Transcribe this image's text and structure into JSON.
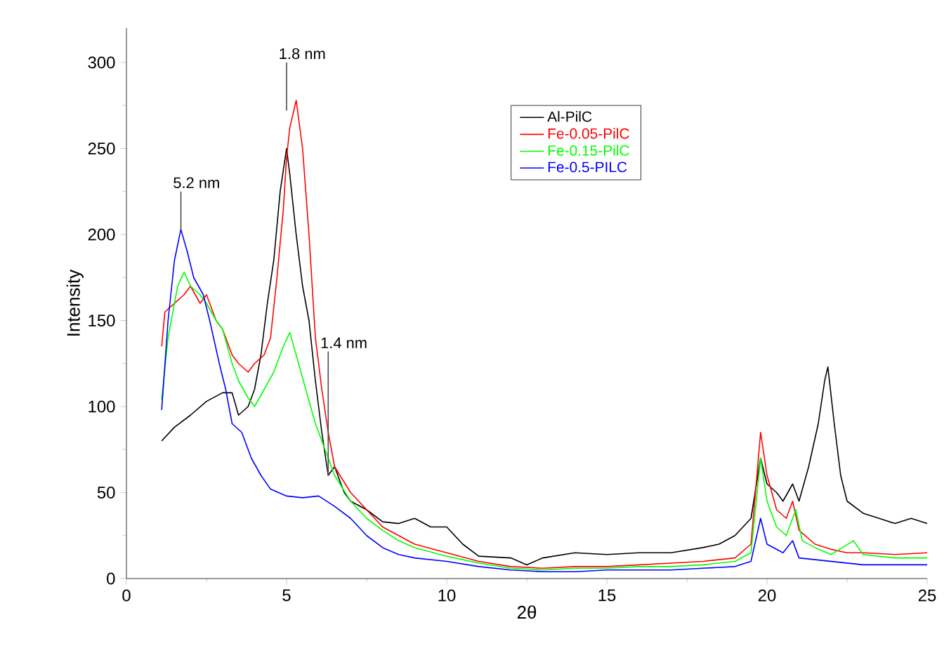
{
  "chart_data": {
    "type": "line",
    "xlabel": "2θ",
    "ylabel": "Intensity",
    "xlim": [
      0,
      25
    ],
    "ylim": [
      0,
      320
    ],
    "xticks": [
      0,
      5,
      10,
      15,
      20,
      25
    ],
    "yticks": [
      0,
      50,
      100,
      150,
      200,
      250,
      300
    ],
    "legend": "top right",
    "grid": false,
    "marker": "none",
    "line_style": "solid",
    "annotations": [
      {
        "text": "1.8 nm",
        "x": 5.0,
        "y": 272
      },
      {
        "text": "5.2 nm",
        "x": 1.7,
        "y": 202
      },
      {
        "text": "1.4 nm",
        "x": 6.3,
        "y": 60
      }
    ],
    "series": [
      {
        "name": "Al-PilC",
        "color": "#000000",
        "x": [
          1.1,
          1.5,
          2,
          2.5,
          3,
          3.3,
          3.5,
          3.8,
          4,
          4.2,
          4.4,
          4.6,
          4.8,
          5.0,
          5.1,
          5.3,
          5.5,
          5.7,
          5.9,
          6.1,
          6.3,
          6.5,
          6.8,
          7,
          7.5,
          8,
          8.5,
          9,
          9.5,
          10,
          10.5,
          11,
          12,
          12.5,
          13,
          14,
          15,
          16,
          17,
          18,
          18.5,
          19,
          19.5,
          19.8,
          20,
          20.3,
          20.5,
          20.8,
          21,
          21.3,
          21.6,
          21.8,
          21.9,
          22.1,
          22.3,
          22.5,
          23,
          23.5,
          24,
          24.5,
          25
        ],
        "values": [
          80,
          88,
          95,
          103,
          108,
          108,
          95,
          100,
          110,
          130,
          160,
          185,
          225,
          250,
          235,
          200,
          170,
          150,
          115,
          85,
          60,
          65,
          50,
          45,
          40,
          33,
          32,
          35,
          30,
          30,
          20,
          13,
          12,
          8,
          12,
          15,
          14,
          15,
          15,
          18,
          20,
          25,
          35,
          70,
          55,
          50,
          45,
          55,
          45,
          65,
          90,
          115,
          123,
          90,
          60,
          45,
          38,
          35,
          32,
          35,
          32
        ]
      },
      {
        "name": "Fe-0.05-PilC",
        "color": "#ff0000",
        "x": [
          1.1,
          1.2,
          1.5,
          1.8,
          2.0,
          2.3,
          2.5,
          2.8,
          3,
          3.3,
          3.5,
          3.8,
          4,
          4.3,
          4.5,
          4.7,
          4.9,
          5.0,
          5.1,
          5.3,
          5.5,
          5.7,
          5.9,
          6.1,
          6.3,
          6.5,
          7,
          7.5,
          8,
          8.5,
          9,
          10,
          11,
          12,
          13,
          14,
          15,
          16,
          17,
          18,
          19,
          19.5,
          19.8,
          20,
          20.3,
          20.6,
          20.8,
          21,
          21.5,
          22,
          22.5,
          23,
          24,
          25
        ],
        "values": [
          135,
          155,
          160,
          165,
          170,
          160,
          165,
          150,
          145,
          130,
          125,
          120,
          125,
          130,
          140,
          175,
          215,
          245,
          262,
          278,
          250,
          200,
          140,
          110,
          85,
          65,
          50,
          40,
          30,
          25,
          20,
          15,
          10,
          7,
          6,
          7,
          7,
          8,
          9,
          10,
          12,
          20,
          85,
          60,
          40,
          35,
          45,
          28,
          20,
          17,
          15,
          15,
          14,
          15
        ]
      },
      {
        "name": "Fe-0.15-PilC",
        "color": "#00ff00",
        "x": [
          1.1,
          1.3,
          1.6,
          1.8,
          2,
          2.3,
          2.5,
          2.8,
          3,
          3.3,
          3.5,
          3.8,
          4,
          4.3,
          4.6,
          4.9,
          5.1,
          5.3,
          5.6,
          5.9,
          6.2,
          6.5,
          7,
          7.5,
          8,
          8.5,
          9,
          10,
          11,
          12,
          13,
          14,
          15,
          16,
          17,
          18,
          19,
          19.5,
          19.8,
          20,
          20.3,
          20.6,
          20.9,
          21.1,
          21.5,
          22,
          22.7,
          23,
          24,
          25
        ],
        "values": [
          104,
          140,
          170,
          178,
          170,
          165,
          160,
          150,
          145,
          125,
          115,
          105,
          100,
          110,
          120,
          135,
          143,
          130,
          110,
          90,
          75,
          60,
          45,
          35,
          28,
          22,
          18,
          13,
          9,
          6,
          5,
          6,
          6,
          7,
          7,
          8,
          10,
          15,
          70,
          45,
          30,
          25,
          40,
          22,
          18,
          14,
          22,
          14,
          12,
          12
        ]
      },
      {
        "name": "Fe-0.5-PILC",
        "color": "#0000ff",
        "x": [
          1.1,
          1.3,
          1.5,
          1.7,
          1.9,
          2.1,
          2.4,
          2.6,
          2.9,
          3.1,
          3.3,
          3.6,
          3.9,
          4.2,
          4.5,
          5,
          5.5,
          6,
          6.5,
          7,
          7.5,
          8,
          8.5,
          9,
          10,
          11,
          12,
          13,
          14,
          15,
          16,
          17,
          18,
          19,
          19.5,
          19.8,
          20,
          20.5,
          20.8,
          21,
          22,
          23,
          24,
          25
        ],
        "values": [
          98,
          150,
          185,
          203,
          190,
          175,
          165,
          150,
          125,
          110,
          90,
          85,
          70,
          60,
          52,
          48,
          47,
          48,
          42,
          35,
          25,
          18,
          14,
          12,
          10,
          7,
          5,
          4,
          4,
          5,
          5,
          5,
          6,
          7,
          10,
          35,
          20,
          15,
          22,
          12,
          10,
          8,
          8,
          8
        ]
      }
    ]
  }
}
